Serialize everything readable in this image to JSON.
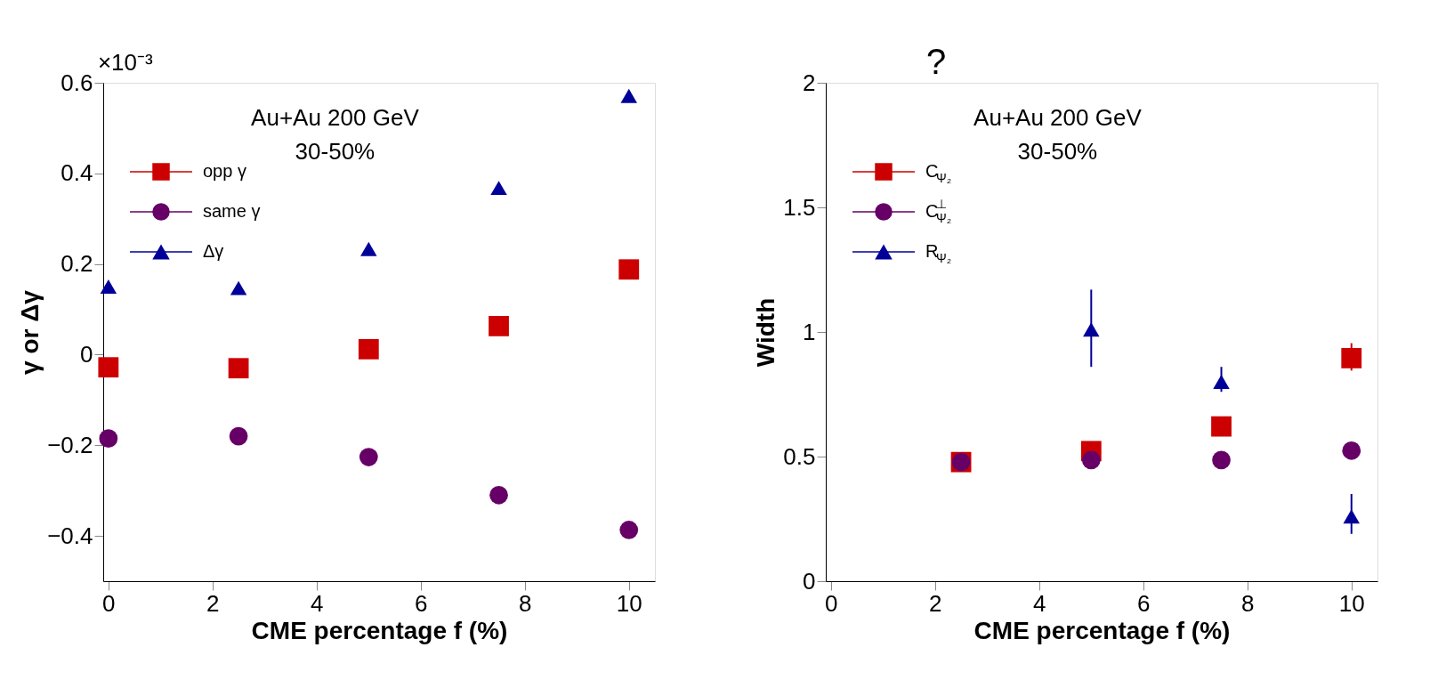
{
  "chart_data": [
    {
      "type": "scatter",
      "xlabel": "CME percentage f (%)",
      "ylabel": "γ or Δγ",
      "annotations": [
        "×10⁻³",
        "Au+Au 200 GeV",
        "30-50%"
      ],
      "xlim": [
        -0.1,
        10.5
      ],
      "xticks": [
        0,
        2,
        4,
        6,
        8,
        10
      ],
      "ylim": [
        -0.5,
        0.6
      ],
      "yticks": [
        {
          "value": -0.4,
          "label": "−0.4"
        },
        {
          "value": -0.2,
          "label": "−0.2"
        },
        0,
        0.2,
        0.4,
        0.6
      ],
      "legend": "top left",
      "series": [
        {
          "name": "opp  γ",
          "color": "#cc0000",
          "marker": "square",
          "x": [
            0,
            2.5,
            5,
            7.5,
            10
          ],
          "values": [
            -0.028,
            -0.03,
            0.012,
            0.063,
            0.188
          ]
        },
        {
          "name": "same γ",
          "color": "#660066",
          "marker": "circle",
          "x": [
            0,
            2.5,
            5,
            7.5,
            10
          ],
          "values": [
            -0.185,
            -0.18,
            -0.226,
            -0.31,
            -0.387
          ]
        },
        {
          "name": "Δγ",
          "color": "#000099",
          "marker": "triangle",
          "x": [
            0,
            2.5,
            5,
            7.5,
            10
          ],
          "values": [
            0.15,
            0.147,
            0.233,
            0.368,
            0.571
          ]
        }
      ]
    },
    {
      "type": "scatter",
      "xlabel": "CME percentage f (%)",
      "ylabel": "Width",
      "annotations": [
        "?",
        "Au+Au 200 GeV",
        "30-50%"
      ],
      "xlim": [
        -0.1,
        10.5
      ],
      "xticks": [
        0,
        2,
        4,
        6,
        8,
        10
      ],
      "ylim": [
        0,
        2
      ],
      "yticks": [
        0,
        0.5,
        1,
        1.5,
        2
      ],
      "legend": "top left",
      "series": [
        {
          "name": "C$_{Ψ₂}$",
          "color": "#cc0000",
          "marker": "square",
          "x": [
            2.5,
            5,
            7.5,
            10
          ],
          "values": [
            0.478,
            0.522,
            0.621,
            0.895
          ],
          "errors": [
            null,
            null,
            null,
            [
              0.845,
              0.955
            ]
          ]
        },
        {
          "name": "C$^{⊥}$$_{Ψ₂}$",
          "color": "#660066",
          "marker": "circle",
          "x": [
            2.5,
            5,
            7.5,
            10
          ],
          "values": [
            0.478,
            0.486,
            0.486,
            0.524
          ]
        },
        {
          "name": "R$_{Ψ₂}$",
          "color": "#000099",
          "marker": "triangle",
          "x": [
            5,
            7.5,
            10
          ],
          "values": [
            1.01,
            0.8,
            0.26
          ],
          "errors": [
            [
              0.86,
              1.17
            ],
            [
              0.76,
              0.86
            ],
            [
              0.19,
              0.35
            ]
          ]
        }
      ]
    }
  ]
}
